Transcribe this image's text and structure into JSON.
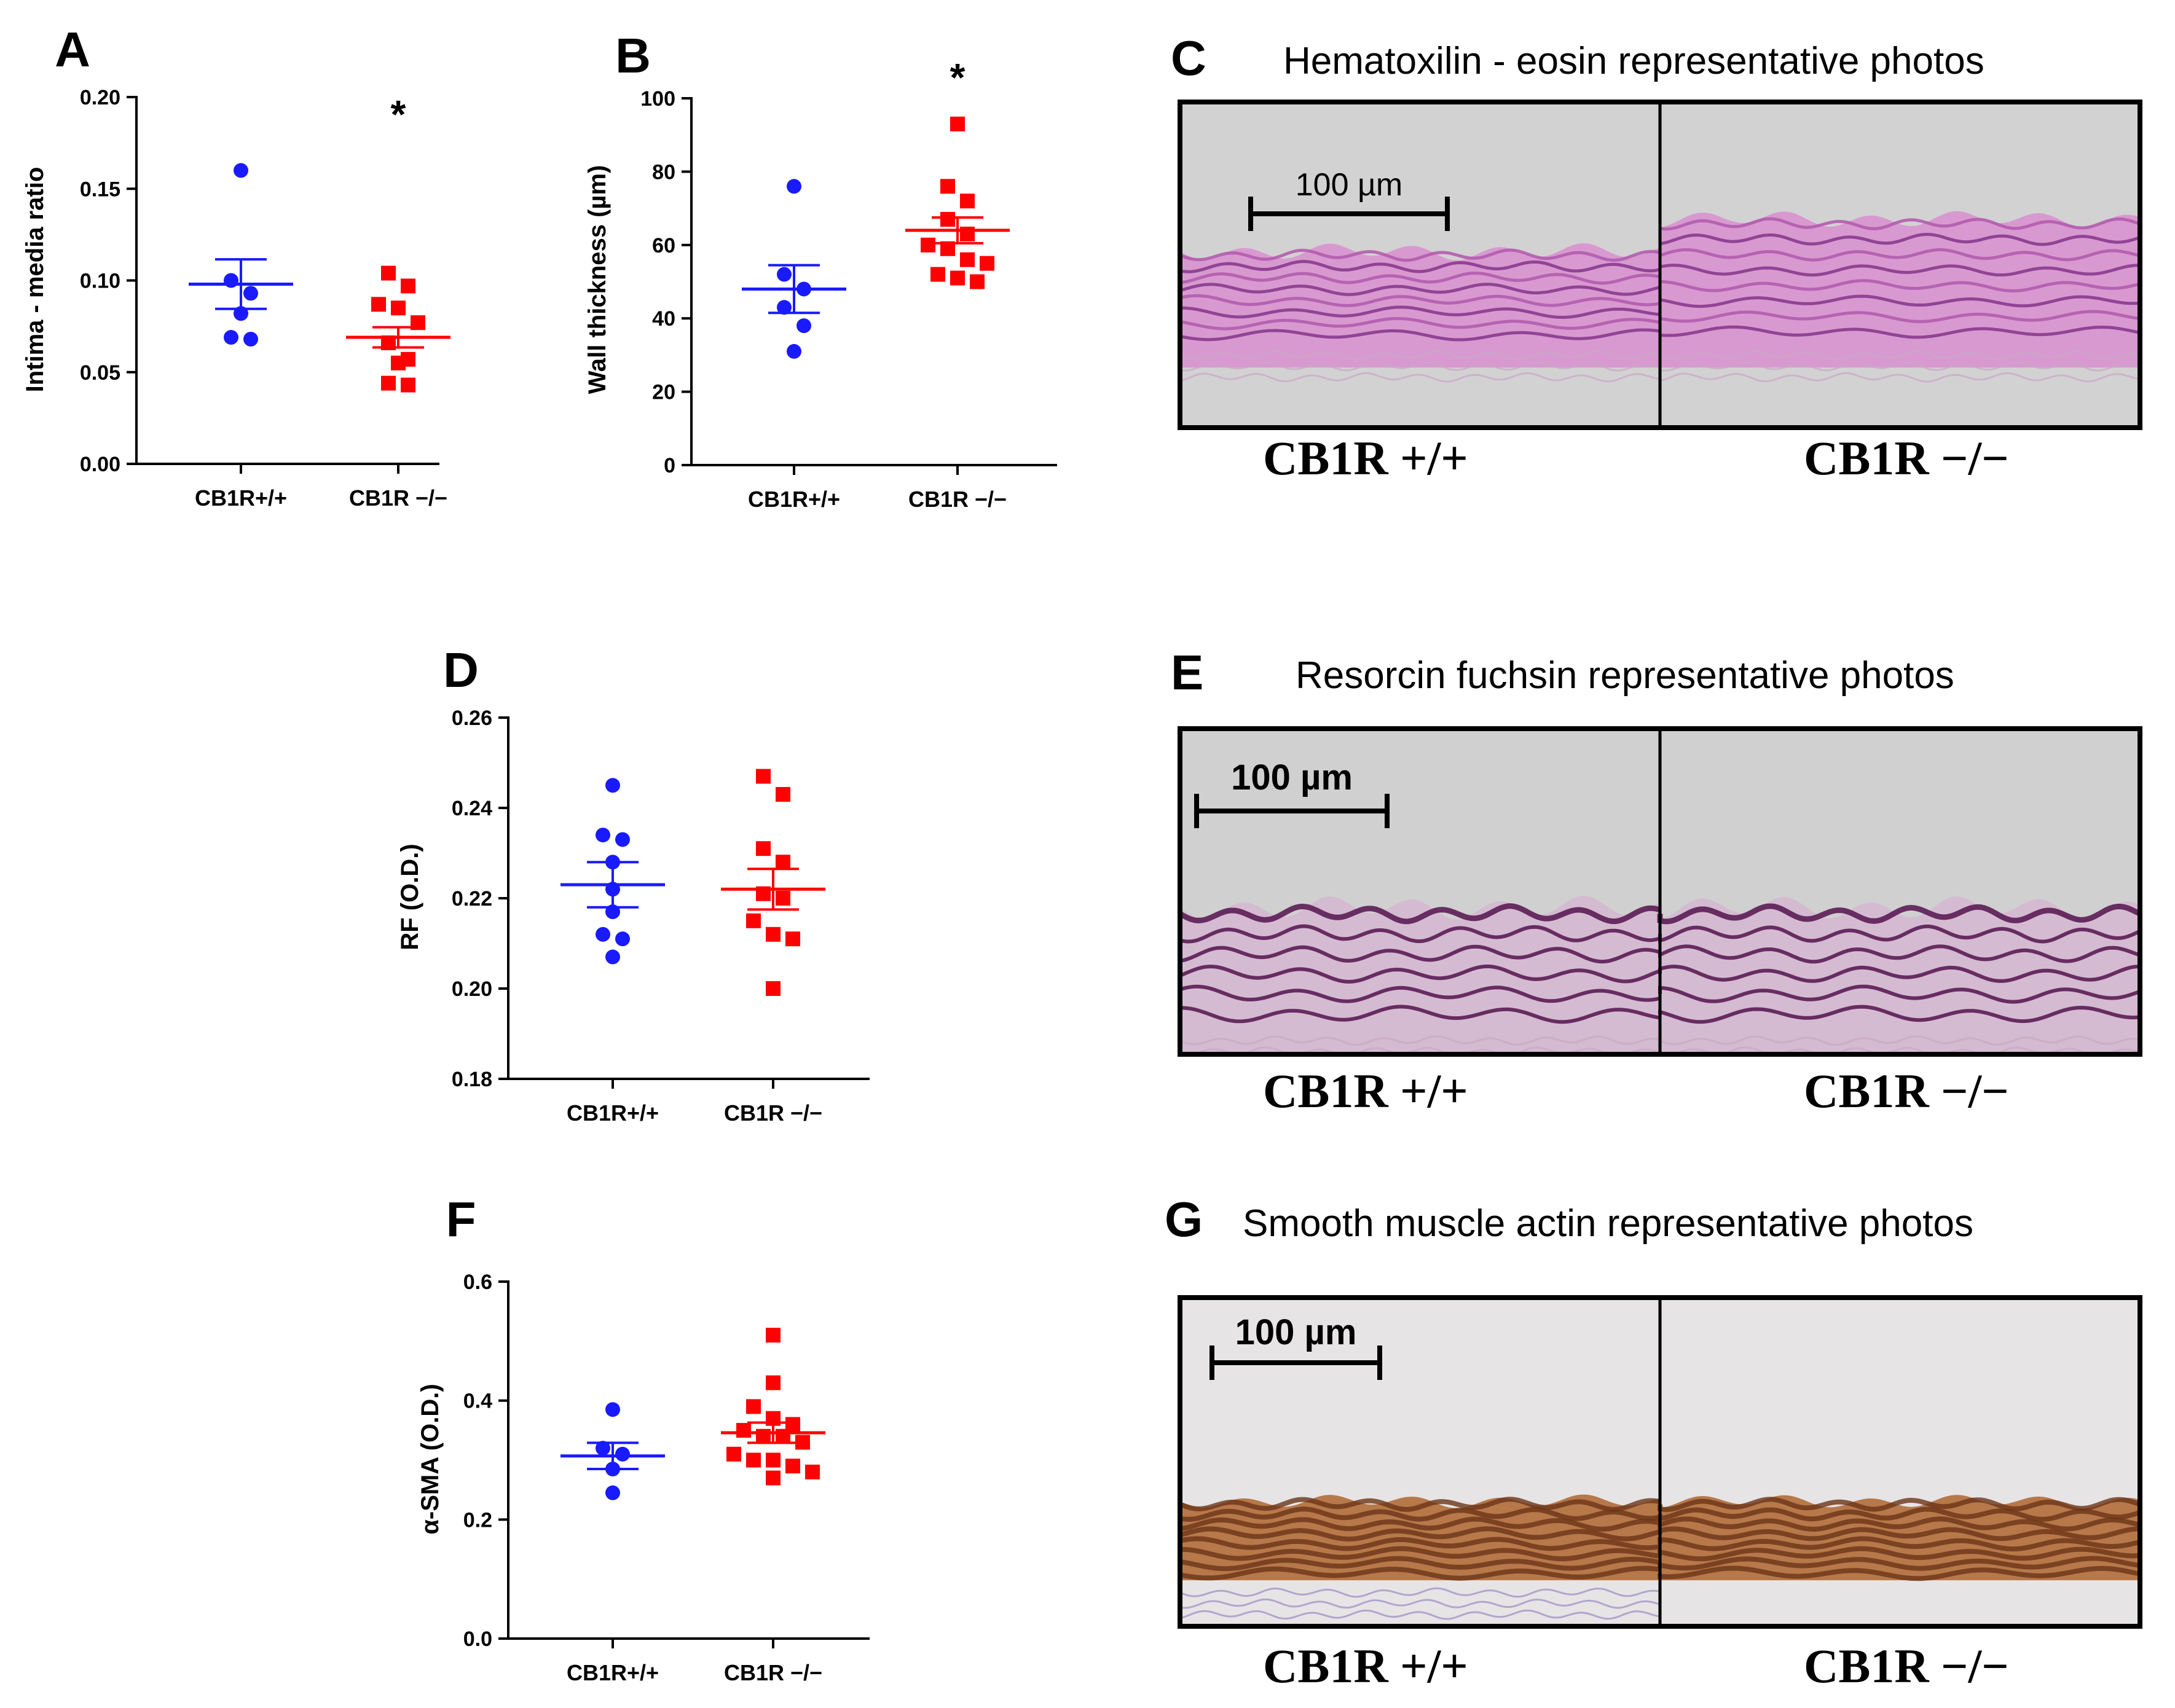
{
  "chart_data": [
    {
      "id": "A",
      "type": "scatter",
      "panel": "A",
      "ylabel": "Intima - media ratio",
      "ylim": [
        0,
        0.2
      ],
      "yticks": [
        0.0,
        0.05,
        0.1,
        0.15,
        0.2
      ],
      "ytick_labels": [
        "0.00",
        "0.05",
        "0.10",
        "0.15",
        "0.20"
      ],
      "categories": [
        "CB1R+/+",
        "CB1R −/−"
      ],
      "significance": "*",
      "series": [
        {
          "name": "CB1R+/+",
          "color": "#1a1aff",
          "marker": "circle",
          "values": [
            0.16,
            0.1,
            0.093,
            0.082,
            0.069,
            0.068
          ],
          "mean": 0.098,
          "sem": 0.0135
        },
        {
          "name": "CB1R −/−",
          "color": "#ff0000",
          "marker": "square",
          "values": [
            0.104,
            0.097,
            0.087,
            0.085,
            0.077,
            0.066,
            0.057,
            0.055,
            0.044,
            0.043
          ],
          "mean": 0.069,
          "sem": 0.0055
        }
      ]
    },
    {
      "id": "B",
      "type": "scatter",
      "panel": "B",
      "ylabel": "Wall thickness  (µm)",
      "ylim": [
        0,
        100
      ],
      "yticks": [
        0,
        20,
        40,
        60,
        80,
        100
      ],
      "ytick_labels": [
        "0",
        "20",
        "40",
        "60",
        "80",
        "100"
      ],
      "categories": [
        "CB1R+/+",
        "CB1R −/−"
      ],
      "significance": "*",
      "series": [
        {
          "name": "CB1R+/+",
          "color": "#1a1aff",
          "marker": "circle",
          "values": [
            76,
            52,
            48,
            43,
            38,
            31
          ],
          "mean": 48,
          "sem": 6.5
        },
        {
          "name": "CB1R −/−",
          "color": "#ff0000",
          "marker": "square",
          "values": [
            93,
            76,
            72,
            67,
            63,
            60,
            59,
            56,
            55,
            52,
            51,
            50
          ],
          "mean": 64,
          "sem": 3.5
        }
      ]
    },
    {
      "id": "D",
      "type": "scatter",
      "panel": "D",
      "ylabel": "RF (O.D.)",
      "ylim": [
        0.18,
        0.26
      ],
      "yticks": [
        0.18,
        0.2,
        0.22,
        0.24,
        0.26
      ],
      "ytick_labels": [
        "0.18",
        "0.20",
        "0.22",
        "0.24",
        "0.26"
      ],
      "categories": [
        "CB1R+/+",
        "CB1R −/−"
      ],
      "series": [
        {
          "name": "CB1R+/+",
          "color": "#1a1aff",
          "marker": "circle",
          "values": [
            0.245,
            0.234,
            0.233,
            0.228,
            0.222,
            0.217,
            0.212,
            0.211,
            0.207
          ],
          "mean": 0.223,
          "sem": 0.005
        },
        {
          "name": "CB1R −/−",
          "color": "#ff0000",
          "marker": "square",
          "values": [
            0.247,
            0.243,
            0.231,
            0.228,
            0.221,
            0.22,
            0.215,
            0.212,
            0.211,
            0.2
          ],
          "mean": 0.222,
          "sem": 0.0045
        }
      ]
    },
    {
      "id": "F",
      "type": "scatter",
      "panel": "F",
      "ylabel": "α-SMA (O.D.)",
      "ylim": [
        0,
        0.6
      ],
      "yticks": [
        0.0,
        0.2,
        0.4,
        0.6
      ],
      "ytick_labels": [
        "0.0",
        "0.2",
        "0.4",
        "0.6"
      ],
      "categories": [
        "CB1R+/+",
        "CB1R −/−"
      ],
      "series": [
        {
          "name": "CB1R+/+",
          "color": "#1a1aff",
          "marker": "circle",
          "values": [
            0.385,
            0.32,
            0.31,
            0.285,
            0.245
          ],
          "mean": 0.307,
          "sem": 0.022
        },
        {
          "name": "CB1R −/−",
          "color": "#ff0000",
          "marker": "square",
          "values": [
            0.51,
            0.43,
            0.39,
            0.37,
            0.36,
            0.35,
            0.34,
            0.34,
            0.33,
            0.31,
            0.3,
            0.3,
            0.29,
            0.28,
            0.27
          ],
          "mean": 0.346,
          "sem": 0.017
        }
      ]
    }
  ],
  "photos": [
    {
      "letter": "C",
      "title": "Hematoxilin - eosin representative photos",
      "scale_bar": "100 µm",
      "left_label": "CB1R +/+",
      "right_label": "CB1R −/−",
      "background": "#d2d2d2",
      "tissue_dark": "#8a3a8e",
      "tissue_light": "#d98fd0"
    },
    {
      "letter": "E",
      "title": "Resorcin fuchsin representative photos",
      "scale_bar": "100 µm",
      "left_label": "CB1R +/+",
      "right_label": "CB1R −/−",
      "background": "#d0d0d0",
      "tissue_dark": "#5b1d54",
      "tissue_light": "#d6b2d2"
    },
    {
      "letter": "G",
      "title": "Smooth muscle actin representative photos",
      "scale_bar": "100 µm",
      "left_label": "CB1R +/+",
      "right_label": "CB1R −/−",
      "background": "#e7e4e6",
      "tissue_dark": "#6b3418",
      "tissue_light": "#b7784a"
    }
  ]
}
